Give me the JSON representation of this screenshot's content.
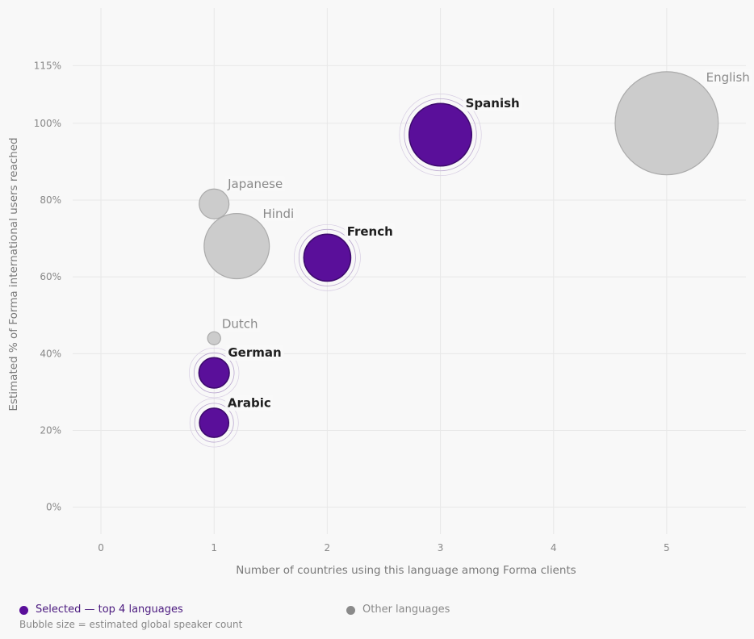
{
  "chart_data": {
    "type": "scatter",
    "title": "",
    "xlabel": "Number of countries using this language among Forma clients",
    "ylabel": "Estimated % of Forma international users reached",
    "x_ticks": [
      0,
      1,
      2,
      3,
      4,
      5
    ],
    "y_ticks": [
      0,
      20,
      40,
      60,
      80,
      100,
      115
    ],
    "y_tick_labels": [
      "0%",
      "20%",
      "40%",
      "60%",
      "80%",
      "100%",
      "115%"
    ],
    "xlim": [
      -0.25,
      5.7
    ],
    "ylim": [
      -7,
      130
    ],
    "grid": true,
    "points": [
      {
        "label": "English",
        "x": 5,
        "y": 100,
        "size": 1500,
        "selected": false
      },
      {
        "label": "Spanish",
        "x": 3,
        "y": 97,
        "size": 550,
        "selected": true
      },
      {
        "label": "Hindi",
        "x": 1.2,
        "y": 68,
        "size": 600,
        "selected": false
      },
      {
        "label": "French",
        "x": 2,
        "y": 65,
        "size": 310,
        "selected": true
      },
      {
        "label": "Japanese",
        "x": 1,
        "y": 79,
        "size": 125,
        "selected": false
      },
      {
        "label": "Dutch",
        "x": 1,
        "y": 44,
        "size": 24,
        "selected": false
      },
      {
        "label": "German",
        "x": 1,
        "y": 35,
        "size": 130,
        "selected": true
      },
      {
        "label": "Arabic",
        "x": 1,
        "y": 22,
        "size": 120,
        "selected": true
      }
    ],
    "legend": {
      "placement": "bottom",
      "selected_label": "Selected — top 4 languages",
      "other_label": "Other languages",
      "size_note": "Bubble size = estimated global speaker count"
    },
    "colors": {
      "selected_fill": "#5a0f9a",
      "selected_stroke": "#3d0a6e",
      "other_fill": "#cccccc",
      "other_stroke": "#aaaaaa",
      "legend_selected_text": "#4b1a7f",
      "legend_other_dot": "#8a8a8a"
    }
  }
}
